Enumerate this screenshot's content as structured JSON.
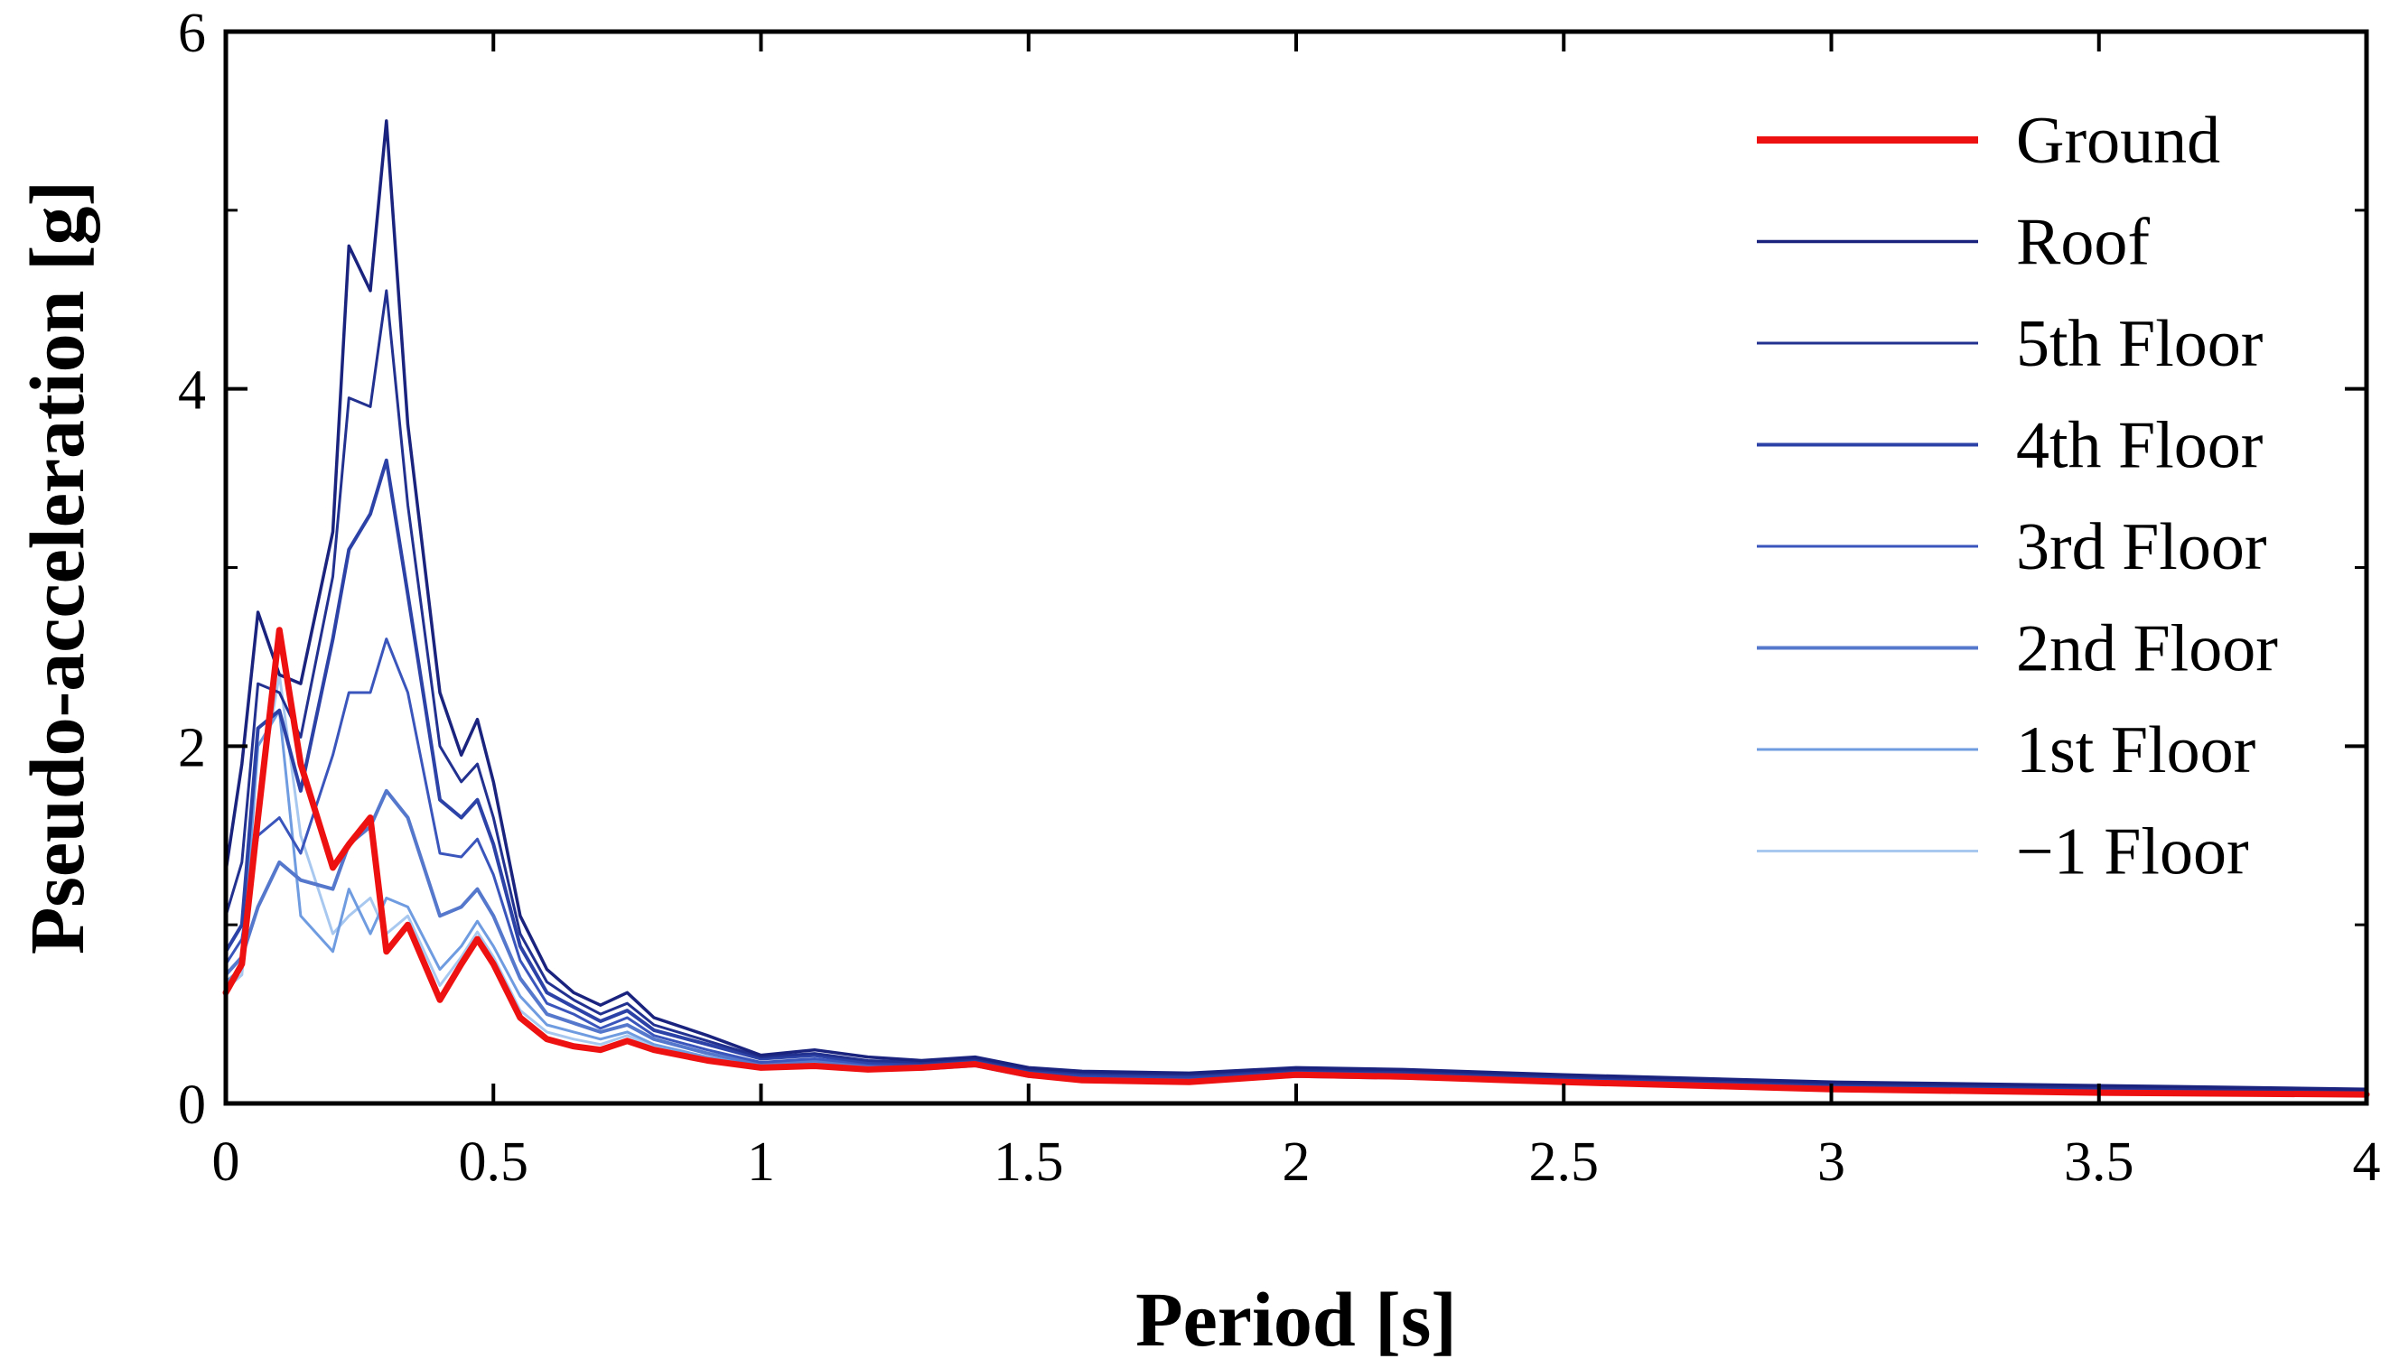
{
  "chart_data": {
    "type": "line",
    "title": "",
    "xlabel": "Period [s]",
    "ylabel": "Pseudo-acceleration [g]",
    "xlim": [
      0,
      4
    ],
    "ylim": [
      0,
      6
    ],
    "xticks": [
      0,
      0.5,
      1,
      1.5,
      2,
      2.5,
      3,
      3.5,
      4
    ],
    "xtick_labels": [
      "0",
      "0.5",
      "1",
      "1.5",
      "2",
      "2.5",
      "3",
      "3.5",
      "4"
    ],
    "yticks": [
      0,
      2,
      4,
      6
    ],
    "ytick_labels": [
      "0",
      "2",
      "4",
      "6"
    ],
    "grid": false,
    "legend_position": "top-right",
    "x": [
      0,
      0.03,
      0.06,
      0.1,
      0.14,
      0.2,
      0.23,
      0.27,
      0.3,
      0.34,
      0.4,
      0.44,
      0.47,
      0.5,
      0.55,
      0.6,
      0.65,
      0.7,
      0.75,
      0.8,
      0.9,
      1.0,
      1.1,
      1.2,
      1.3,
      1.4,
      1.5,
      1.6,
      1.8,
      2.0,
      2.2,
      2.5,
      3.0,
      3.5,
      4.0
    ],
    "series": [
      {
        "name": "Ground",
        "color": "#ee1111",
        "width": 7,
        "values": [
          0.62,
          0.78,
          1.6,
          2.65,
          1.9,
          1.32,
          1.45,
          1.6,
          0.85,
          1.0,
          0.58,
          0.78,
          0.92,
          0.78,
          0.48,
          0.36,
          0.32,
          0.3,
          0.35,
          0.3,
          0.24,
          0.2,
          0.21,
          0.19,
          0.2,
          0.22,
          0.16,
          0.13,
          0.12,
          0.16,
          0.15,
          0.12,
          0.08,
          0.06,
          0.05
        ]
      },
      {
        "name": "Roof",
        "color": "#1a237e",
        "width": 3.5,
        "values": [
          1.3,
          1.9,
          2.75,
          2.4,
          2.35,
          3.2,
          4.8,
          4.55,
          5.5,
          3.8,
          2.3,
          1.95,
          2.15,
          1.8,
          1.05,
          0.75,
          0.62,
          0.55,
          0.62,
          0.48,
          0.38,
          0.27,
          0.3,
          0.26,
          0.24,
          0.26,
          0.2,
          0.18,
          0.17,
          0.2,
          0.19,
          0.16,
          0.12,
          0.1,
          0.08
        ]
      },
      {
        "name": "5th Floor",
        "color": "#22318f",
        "width": 3,
        "values": [
          1.05,
          1.35,
          2.35,
          2.3,
          2.05,
          2.95,
          3.95,
          3.9,
          4.55,
          3.35,
          2.0,
          1.8,
          1.9,
          1.6,
          0.95,
          0.68,
          0.58,
          0.5,
          0.56,
          0.44,
          0.35,
          0.26,
          0.28,
          0.24,
          0.23,
          0.25,
          0.19,
          0.17,
          0.16,
          0.19,
          0.18,
          0.15,
          0.11,
          0.09,
          0.07
        ]
      },
      {
        "name": "4th Floor",
        "color": "#2c42a6",
        "width": 4,
        "values": [
          0.85,
          1.0,
          2.1,
          2.2,
          1.75,
          2.6,
          3.1,
          3.3,
          3.6,
          2.85,
          1.7,
          1.6,
          1.7,
          1.45,
          0.88,
          0.62,
          0.54,
          0.46,
          0.52,
          0.41,
          0.33,
          0.25,
          0.27,
          0.23,
          0.22,
          0.24,
          0.18,
          0.16,
          0.15,
          0.18,
          0.17,
          0.14,
          0.1,
          0.08,
          0.07
        ]
      },
      {
        "name": "3rd Floor",
        "color": "#3a55bb",
        "width": 3,
        "values": [
          0.78,
          0.92,
          1.5,
          1.6,
          1.4,
          1.95,
          2.3,
          2.3,
          2.6,
          2.3,
          1.4,
          1.38,
          1.48,
          1.28,
          0.8,
          0.56,
          0.5,
          0.42,
          0.48,
          0.38,
          0.3,
          0.23,
          0.25,
          0.22,
          0.21,
          0.23,
          0.17,
          0.15,
          0.14,
          0.17,
          0.16,
          0.13,
          0.1,
          0.08,
          0.06
        ]
      },
      {
        "name": "2nd Floor",
        "color": "#5577cc",
        "width": 4,
        "values": [
          0.72,
          0.82,
          1.1,
          1.35,
          1.25,
          1.2,
          1.45,
          1.55,
          1.75,
          1.6,
          1.05,
          1.1,
          1.2,
          1.05,
          0.7,
          0.5,
          0.45,
          0.4,
          0.44,
          0.36,
          0.28,
          0.22,
          0.24,
          0.21,
          0.2,
          0.22,
          0.16,
          0.14,
          0.13,
          0.16,
          0.15,
          0.12,
          0.09,
          0.07,
          0.06
        ]
      },
      {
        "name": "1st Floor",
        "color": "#6f9be0",
        "width": 3,
        "values": [
          0.68,
          0.76,
          2.0,
          2.2,
          1.05,
          0.85,
          1.2,
          0.95,
          1.15,
          1.1,
          0.75,
          0.88,
          1.02,
          0.88,
          0.6,
          0.44,
          0.4,
          0.36,
          0.4,
          0.33,
          0.26,
          0.21,
          0.23,
          0.2,
          0.19,
          0.21,
          0.15,
          0.13,
          0.12,
          0.15,
          0.14,
          0.12,
          0.09,
          0.07,
          0.06
        ]
      },
      {
        "name": "−1 Floor",
        "color": "#a8c8f0",
        "width": 3,
        "values": [
          0.64,
          0.72,
          1.7,
          2.4,
          1.5,
          0.95,
          1.05,
          1.15,
          0.95,
          1.05,
          0.66,
          0.82,
          0.96,
          0.82,
          0.52,
          0.4,
          0.36,
          0.33,
          0.38,
          0.32,
          0.25,
          0.2,
          0.22,
          0.19,
          0.19,
          0.21,
          0.15,
          0.13,
          0.12,
          0.15,
          0.14,
          0.12,
          0.09,
          0.07,
          0.05
        ]
      }
    ]
  }
}
